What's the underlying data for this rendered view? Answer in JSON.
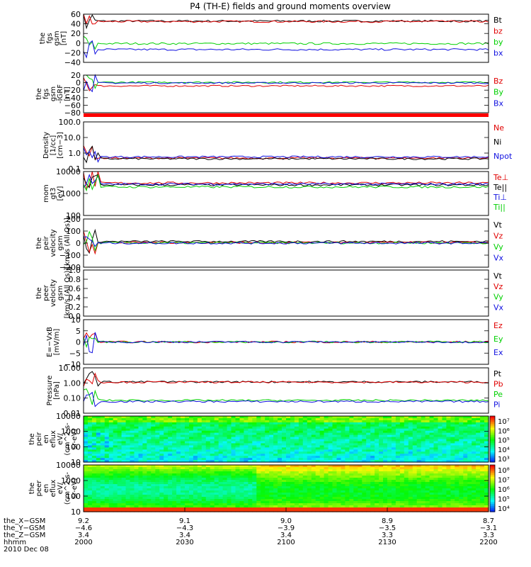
{
  "title": "P4 (TH-E) fields and ground moments overview",
  "colors": {
    "red": "#e00000",
    "green": "#00d000",
    "blue": "#1010e0",
    "black": "#000000"
  },
  "chart_data": [
    {
      "type": "line",
      "ylabel": [
        "the",
        "fgs",
        "gsm",
        "[nT]"
      ],
      "yticks": [
        "60",
        "40",
        "20",
        "0",
        "−20",
        "−40"
      ],
      "ylim": [
        -40,
        65
      ],
      "legend": [
        {
          "label": "Bt",
          "color": "#000000"
        },
        {
          "label": "bz",
          "color": "#e00000"
        },
        {
          "label": "by",
          "color": "#00d000"
        },
        {
          "label": "bx",
          "color": "#1010e0"
        }
      ],
      "series": [
        {
          "color": "#000000",
          "base": 50
        },
        {
          "color": "#e00000",
          "base": 49
        },
        {
          "color": "#00d000",
          "base": 1
        },
        {
          "color": "#1010e0",
          "base": -12
        }
      ]
    },
    {
      "type": "line",
      "ylabel": [
        "the",
        "fgs",
        "gsm",
        "-IGRF",
        "[nT]"
      ],
      "yticks": [
        "20",
        "0",
        "−20",
        "−40",
        "−60",
        "−80"
      ],
      "ylim": [
        -90,
        25
      ],
      "legend": [
        {
          "label": "Bz",
          "color": "#e00000"
        },
        {
          "label": "By",
          "color": "#00d000"
        },
        {
          "label": "Bx",
          "color": "#1010e0"
        }
      ],
      "series": [
        {
          "color": "#e00000",
          "base": -8
        },
        {
          "color": "#00d000",
          "base": 3
        },
        {
          "color": "#1010e0",
          "base": 1
        }
      ]
    },
    {
      "type": "line",
      "ylabel": [
        "Density",
        "[1/cc]",
        "[cm−3]"
      ],
      "yticks": [
        "100.0",
        "10.0",
        "1.0",
        "0.1"
      ],
      "ylim": [
        0.1,
        120
      ],
      "legend": [
        {
          "label": "Ne",
          "color": "#e00000"
        },
        {
          "label": "Ni",
          "color": "#000000"
        },
        {
          "label": "Npot",
          "color": "#1010e0"
        }
      ],
      "series": [
        {
          "color": "#e00000",
          "base": 0.5
        },
        {
          "color": "#000000",
          "base": 0.45
        },
        {
          "color": "#1010e0",
          "base": 0.6
        }
      ]
    },
    {
      "type": "line",
      "ylabel": [
        "mom",
        "gt3",
        "[eV]"
      ],
      "yticks": [
        "10000",
        "1000",
        "100"
      ],
      "ylim": [
        30,
        10000
      ],
      "legend": [
        {
          "label": "Te⊥",
          "color": "#e00000"
        },
        {
          "label": "Te||",
          "color": "#000000"
        },
        {
          "label": "Ti⊥",
          "color": "#1010e0"
        },
        {
          "label": "Ti||",
          "color": "#00d000"
        }
      ],
      "series": [
        {
          "color": "#e00000",
          "base": 2200
        },
        {
          "color": "#000000",
          "base": 1700
        },
        {
          "color": "#1010e0",
          "base": 1900
        },
        {
          "color": "#00d000",
          "base": 1300
        }
      ]
    },
    {
      "type": "line",
      "ylabel": [
        "the",
        "peir",
        "velocity",
        "gsm",
        "[km/s (All Qs)]"
      ],
      "yticks": [
        "200",
        "100",
        "0",
        "−100",
        "−200"
      ],
      "ylim": [
        -230,
        220
      ],
      "legend": [
        {
          "label": "Vt",
          "color": "#000000"
        },
        {
          "label": "Vz",
          "color": "#e00000"
        },
        {
          "label": "Vy",
          "color": "#00d000"
        },
        {
          "label": "Vx",
          "color": "#1010e0"
        }
      ],
      "series": [
        {
          "color": "#000000",
          "base": 10
        },
        {
          "color": "#e00000",
          "base": 0
        },
        {
          "color": "#00d000",
          "base": -3
        },
        {
          "color": "#1010e0",
          "base": -5
        }
      ]
    },
    {
      "type": "line",
      "ylabel": [
        "the",
        "peer",
        "velocity",
        "gsm",
        "[km/s (All Qs)]"
      ],
      "yticks": [
        "1.0",
        "0.8",
        "0.6",
        "0.4",
        "0.2",
        "0.0"
      ],
      "ylim": [
        0,
        1
      ],
      "legend": [
        {
          "label": "Vt",
          "color": "#000000"
        },
        {
          "label": "Vz",
          "color": "#e00000"
        },
        {
          "label": "Vy",
          "color": "#00d000"
        },
        {
          "label": "Vx",
          "color": "#1010e0"
        }
      ],
      "series": []
    },
    {
      "type": "line",
      "ylabel": [
        "E=−VxB",
        "[mV/m]"
      ],
      "yticks": [
        "10",
        "5",
        "0",
        "−5",
        "−10"
      ],
      "ylim": [
        -10,
        10
      ],
      "legend": [
        {
          "label": "Ez",
          "color": "#e00000"
        },
        {
          "label": "Ey",
          "color": "#00d000"
        },
        {
          "label": "Ex",
          "color": "#1010e0"
        }
      ],
      "series": [
        {
          "color": "#e00000",
          "base": 0
        },
        {
          "color": "#00d000",
          "base": 0
        },
        {
          "color": "#1010e0",
          "base": 0
        }
      ]
    },
    {
      "type": "line",
      "ylabel": [
        "Pressure",
        "[nPa]"
      ],
      "yticks": [
        "10.00",
        "1.00",
        "0.10",
        "0.01"
      ],
      "ylim": [
        0.008,
        10
      ],
      "legend": [
        {
          "label": "Pt",
          "color": "#000000"
        },
        {
          "label": "Pb",
          "color": "#e00000"
        },
        {
          "label": "Pe",
          "color": "#00d000"
        },
        {
          "label": "Pi",
          "color": "#1010e0"
        }
      ],
      "series": [
        {
          "color": "#000000",
          "base": 1.1
        },
        {
          "color": "#e00000",
          "base": 1.05
        },
        {
          "color": "#00d000",
          "base": 0.06
        },
        {
          "color": "#1010e0",
          "base": 0.05
        }
      ]
    },
    {
      "type": "heatmap",
      "ylabel": [
        "the",
        "peir",
        "en",
        "eflux",
        "eV/",
        "(cm^2-s-",
        "sr-eV)"
      ],
      "yticks": [
        "10000",
        "1000",
        "100",
        "10"
      ],
      "ylim": [
        8,
        25000
      ],
      "colorbar_ticks": [
        "10⁷",
        "10⁶",
        "10⁵",
        "10⁴",
        "10³"
      ]
    },
    {
      "type": "heatmap",
      "ylabel": [
        "the",
        "peer",
        "en",
        "eflux",
        "eV/",
        "(cm^2-s-",
        "sr-eV)"
      ],
      "yticks": [
        "10000",
        "1000",
        "100",
        "10"
      ],
      "ylim": [
        8,
        25000
      ],
      "colorbar_ticks": [
        "10⁸",
        "10⁷",
        "10⁶",
        "10⁵",
        "10⁴"
      ]
    }
  ],
  "xaxis": {
    "row_labels": [
      "the_X−GSM",
      "the_Y−GSM",
      "the_Z−GSM",
      "hhmm"
    ],
    "date": "2010 Dec 08",
    "columns": [
      {
        "x": "9.2",
        "y": "−4.6",
        "z": "3.4",
        "time": "2000"
      },
      {
        "x": "9.1",
        "y": "−4.3",
        "z": "3.4",
        "time": "2030"
      },
      {
        "x": "9.0",
        "y": "−3.9",
        "z": "3.4",
        "time": "2100"
      },
      {
        "x": "8.9",
        "y": "−3.5",
        "z": "3.3",
        "time": "2130"
      },
      {
        "x": "8.7",
        "y": "−3.1",
        "z": "3.3",
        "time": "2200"
      }
    ]
  }
}
